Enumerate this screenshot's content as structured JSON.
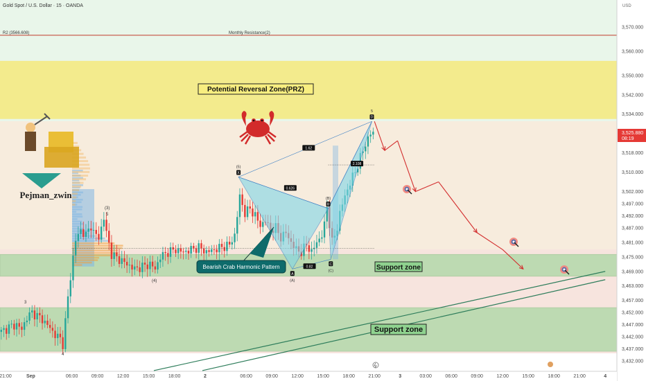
{
  "header": {
    "symbol_title": "Gold Spot / U.S. Dollar · 15 · OANDA",
    "currency": "USD"
  },
  "price_badge": {
    "price": "3,525.880",
    "countdown": "08:19",
    "color": "#e53935"
  },
  "colors": {
    "up": "#26a69a",
    "down": "#e53935",
    "prz": "#f5e76e",
    "support": "#8fd28f",
    "pattern": "#7fd6e8",
    "resistance": "#c0392b",
    "trend": "#2e7d5b",
    "projection": "#d32f2f"
  },
  "chart_data": {
    "type": "candlestick",
    "title": "Gold Spot / U.S. Dollar · 15 · OANDA",
    "ylim": [
      3428,
      3582
    ],
    "y_ticks": [
      "3,570.000",
      "3,560.000",
      "3,550.000",
      "3,542.000",
      "3,534.000",
      "3,518.000",
      "3,510.000",
      "3,502.000",
      "3,497.000",
      "3,492.000",
      "3,487.000",
      "3,481.000",
      "3,475.000",
      "3,469.000",
      "3,463.000",
      "3,457.000",
      "3,452.000",
      "3,447.000",
      "3,442.000",
      "3,437.000",
      "3,432.000"
    ],
    "y_tick_values": [
      3570,
      3560,
      3550,
      3542,
      3534,
      3518,
      3510,
      3502,
      3497,
      3492,
      3487,
      3481,
      3475,
      3469,
      3463,
      3457,
      3452,
      3447,
      3442,
      3437,
      3432
    ],
    "x_ticks": [
      "21:00",
      "Sep",
      "06:00",
      "09:00",
      "12:00",
      "15:00",
      "18:00",
      "2",
      "06:00",
      "09:00",
      "12:00",
      "15:00",
      "18:00",
      "21:00",
      "3",
      "03:00",
      "06:00",
      "09:00",
      "12:00",
      "15:00",
      "18:00",
      "21:00",
      "4"
    ],
    "x_tick_index": [
      0,
      12,
      28,
      38,
      48,
      58,
      68,
      80,
      96,
      106,
      116,
      126,
      136,
      146,
      156,
      166,
      176,
      186,
      196,
      206,
      216,
      226,
      236
    ],
    "bars_visible": 146,
    "close_path": [
      [
        0,
        3444
      ],
      [
        3,
        3446
      ],
      [
        6,
        3447
      ],
      [
        8,
        3445
      ],
      [
        10,
        3450
      ],
      [
        12,
        3452
      ],
      [
        15,
        3450
      ],
      [
        18,
        3447
      ],
      [
        20,
        3444
      ],
      [
        23,
        3441
      ],
      [
        24,
        3439
      ],
      [
        26,
        3458
      ],
      [
        28,
        3475
      ],
      [
        29,
        3482
      ],
      [
        31,
        3486
      ],
      [
        33,
        3484
      ],
      [
        35,
        3488
      ],
      [
        36,
        3485
      ],
      [
        38,
        3483
      ],
      [
        40,
        3491
      ],
      [
        41,
        3485
      ],
      [
        43,
        3476
      ],
      [
        46,
        3474
      ],
      [
        49,
        3472
      ],
      [
        52,
        3470
      ],
      [
        55,
        3471
      ],
      [
        58,
        3472
      ],
      [
        60,
        3470
      ],
      [
        62,
        3475
      ],
      [
        65,
        3477
      ],
      [
        68,
        3478
      ],
      [
        71,
        3477
      ],
      [
        74,
        3478
      ],
      [
        77,
        3479
      ],
      [
        80,
        3477
      ],
      [
        83,
        3478
      ],
      [
        86,
        3479
      ],
      [
        89,
        3480
      ],
      [
        91,
        3484
      ],
      [
        93,
        3500
      ],
      [
        95,
        3493
      ],
      [
        97,
        3495
      ],
      [
        99,
        3492
      ],
      [
        101,
        3488
      ],
      [
        103,
        3490
      ],
      [
        105,
        3486
      ],
      [
        107,
        3487
      ],
      [
        109,
        3483
      ],
      [
        111,
        3485
      ],
      [
        113,
        3481
      ],
      [
        115,
        3478
      ],
      [
        117,
        3477
      ],
      [
        119,
        3480
      ],
      [
        121,
        3477
      ],
      [
        123,
        3481
      ],
      [
        125,
        3484
      ],
      [
        126,
        3488
      ],
      [
        127,
        3496
      ],
      [
        129,
        3481
      ],
      [
        130,
        3484
      ],
      [
        131,
        3487
      ],
      [
        132,
        3493
      ],
      [
        133,
        3497
      ],
      [
        135,
        3503
      ],
      [
        137,
        3508
      ],
      [
        139,
        3513
      ],
      [
        141,
        3519
      ],
      [
        143,
        3524
      ],
      [
        144,
        3526
      ],
      [
        145,
        3526
      ]
    ],
    "price_levels": [
      {
        "label": "R2 (3566.608)",
        "value": 3566.608,
        "caption": "Monthly Resistance(2)"
      }
    ],
    "zones": [
      {
        "label": "Potential Reversal Zone(PRZ)",
        "from": 3532,
        "to": 3556,
        "color": "#f5e76e"
      },
      {
        "label": "Support zone",
        "from": 3467,
        "to": 3476,
        "color": "#8fd28f"
      },
      {
        "label": "Support zone",
        "from": 3436,
        "to": 3454,
        "color": "#8fd28f"
      }
    ],
    "pattern": {
      "name": "Bearish Crab Harmonic Pattern",
      "points": [
        {
          "label": "X",
          "wave": "(5)",
          "idx": 93,
          "price": 3508
        },
        {
          "label": "A",
          "wave": "(A)",
          "idx": 114,
          "price": 3470
        },
        {
          "label": "B",
          "wave": "(B)",
          "idx": 128,
          "price": 3495
        },
        {
          "label": "C",
          "wave": "(C)",
          "idx": 129,
          "price": 3474
        },
        {
          "label": "D",
          "wave": "5",
          "idx": 145,
          "price": 3531
        }
      ],
      "ratios": [
        "0.626",
        "0.82",
        "2.108",
        "1.62"
      ]
    },
    "wave_labels": [
      "3",
      "4",
      "(3)",
      "5",
      "(4)"
    ],
    "trendline_points": [
      [
        60,
        3428
      ],
      [
        236,
        3469
      ]
    ],
    "projection": [
      [
        146,
        3531
      ],
      [
        150,
        3519
      ],
      [
        155,
        3523
      ],
      [
        162,
        3502
      ],
      [
        171,
        3506
      ],
      [
        186,
        3485
      ],
      [
        196,
        3478
      ],
      [
        204,
        3470
      ]
    ]
  },
  "watermark": {
    "name": "Pejman_zwin"
  }
}
